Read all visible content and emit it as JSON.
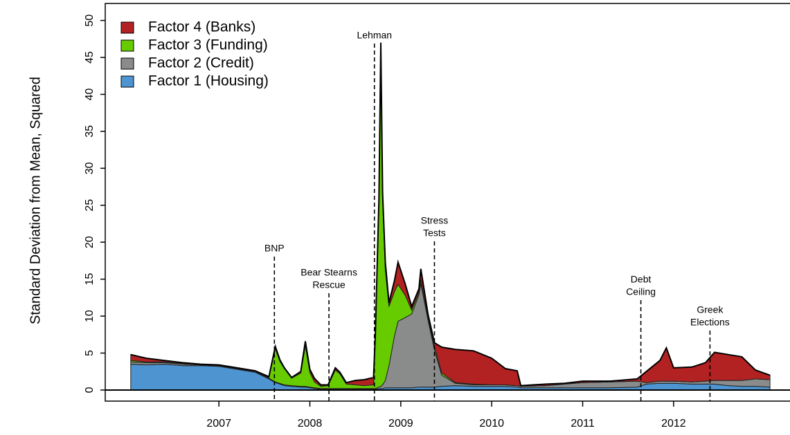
{
  "chart_data": {
    "type": "stacked-area",
    "y_label": "Standard Deviation from Mean, Squared",
    "x": [
      2006.03,
      2006.2,
      2006.4,
      2006.6,
      2006.8,
      2007.0,
      2007.2,
      2007.4,
      2007.55,
      2007.62,
      2007.67,
      2007.72,
      2007.8,
      2007.9,
      2007.95,
      2008.0,
      2008.05,
      2008.12,
      2008.2,
      2008.28,
      2008.33,
      2008.4,
      2008.5,
      2008.6,
      2008.7,
      2008.72,
      2008.76,
      2008.78,
      2008.8,
      2008.83,
      2008.87,
      2008.93,
      2008.97,
      2009.05,
      2009.12,
      2009.2,
      2009.22,
      2009.3,
      2009.37,
      2009.45,
      2009.6,
      2009.8,
      2010.0,
      2010.15,
      2010.28,
      2010.32,
      2010.6,
      2010.8,
      2011.0,
      2011.3,
      2011.6,
      2011.7,
      2011.85,
      2011.92,
      2012.0,
      2012.2,
      2012.35,
      2012.45,
      2012.6,
      2012.75,
      2012.9,
      2013.06
    ],
    "series": [
      {
        "name": "Factor 4 (Banks)",
        "color": "#b22222",
        "values": [
          0.8,
          0.5,
          0.2,
          0.1,
          0.1,
          0.1,
          0.1,
          0.1,
          0.1,
          0.3,
          0.2,
          0.1,
          0.1,
          0.2,
          0.6,
          0.4,
          0.5,
          0.2,
          0.1,
          0.3,
          0.2,
          0.2,
          0.6,
          0.8,
          1.0,
          0.3,
          0.5,
          0.5,
          1.0,
          1.0,
          0.5,
          1.5,
          3.0,
          1.5,
          0.5,
          0.5,
          1.5,
          0.5,
          0.5,
          3.5,
          4.5,
          4.5,
          3.6,
          2.2,
          2.0,
          0.1,
          0.2,
          0.1,
          0.2,
          0.1,
          0.3,
          1.5,
          2.8,
          4.5,
          1.8,
          2.0,
          2.5,
          3.8,
          3.5,
          3.2,
          1.2,
          0.6
        ]
      },
      {
        "name": "Factor 3 (Funding)",
        "color": "#66cc00",
        "values": [
          0.2,
          0.1,
          0.1,
          0.1,
          0,
          0,
          0,
          0,
          0.1,
          4.5,
          3.0,
          2.2,
          1.0,
          1.8,
          5.5,
          2.0,
          0.8,
          0.3,
          0.4,
          2.5,
          2.0,
          0.6,
          0.5,
          0.4,
          0.5,
          7,
          25,
          46,
          25,
          15,
          8,
          6,
          5,
          3,
          0.5,
          0.3,
          0.5,
          0.3,
          0.5,
          0.3,
          0.1,
          0.1,
          0,
          0,
          0,
          0,
          0,
          0,
          0,
          0,
          0,
          0,
          0,
          0,
          0,
          0,
          0,
          0,
          0,
          0,
          0,
          0
        ]
      },
      {
        "name": "Factor 2 (Credit)",
        "color": "#8a8c8c",
        "values": [
          0.3,
          0.3,
          0.2,
          0.2,
          0.1,
          0.1,
          0.1,
          0.1,
          0.1,
          0.1,
          0.1,
          0.1,
          0.1,
          0.1,
          0.1,
          0.1,
          0.1,
          0.1,
          0.1,
          0.1,
          0.1,
          0.1,
          0.1,
          0.1,
          0.1,
          0.1,
          0.2,
          0.3,
          0.5,
          1,
          3,
          7,
          9,
          9.5,
          10,
          12.5,
          14,
          9,
          5,
          1.5,
          0.3,
          0.2,
          0.2,
          0.2,
          0.2,
          0.2,
          0.3,
          0.5,
          0.7,
          0.8,
          0.8,
          0.2,
          0.3,
          0.3,
          0.3,
          0.3,
          0.4,
          0.5,
          0.7,
          0.8,
          1.0,
          1.0
        ]
      },
      {
        "name": "Factor 1 (Housing)",
        "color": "#4d94d0",
        "values": [
          3.5,
          3.4,
          3.5,
          3.3,
          3.3,
          3.2,
          2.8,
          2.4,
          1.5,
          1.0,
          0.8,
          0.6,
          0.5,
          0.4,
          0.4,
          0.3,
          0.2,
          0.1,
          0.1,
          0.1,
          0.1,
          0.1,
          0.1,
          0.1,
          0.1,
          0.1,
          0.2,
          0.2,
          0.2,
          0.3,
          0.3,
          0.3,
          0.3,
          0.3,
          0.3,
          0.4,
          0.4,
          0.4,
          0.4,
          0.5,
          0.6,
          0.5,
          0.5,
          0.5,
          0.4,
          0.3,
          0.3,
          0.3,
          0.3,
          0.3,
          0.4,
          0.8,
          0.9,
          0.9,
          0.9,
          0.8,
          0.8,
          0.8,
          0.6,
          0.5,
          0.5,
          0.4
        ]
      }
    ],
    "annotations": [
      {
        "lines": [
          "BNP"
        ],
        "x": 2007.61
      },
      {
        "lines": [
          "Bear Stearns",
          "Rescue"
        ],
        "x": 2008.21
      },
      {
        "lines": [
          "Lehman"
        ],
        "x": 2008.71
      },
      {
        "lines": [
          "Stress",
          "Tests"
        ],
        "x": 2009.37
      },
      {
        "lines": [
          "Debt",
          "Ceiling"
        ],
        "x": 2011.64
      },
      {
        "lines": [
          "Greek",
          "Elections"
        ],
        "x": 2012.4
      }
    ],
    "xlim": [
      2005.75,
      2013.28
    ],
    "xticks": [
      2007,
      2008,
      2009,
      2010,
      2011,
      2012
    ],
    "ylim": [
      -1.5,
      52.3
    ],
    "yticks": [
      0,
      5,
      10,
      15,
      20,
      25,
      30,
      35,
      40,
      45,
      50
    ],
    "legend": "top-left"
  }
}
